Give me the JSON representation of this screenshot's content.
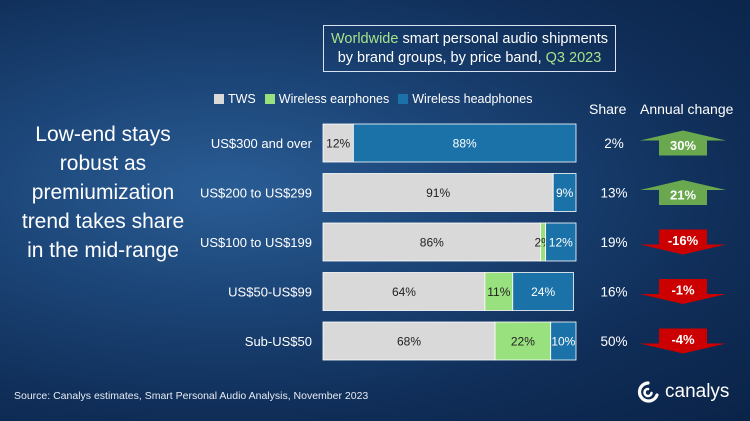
{
  "headline": {
    "line1_prefix": "Worldwide",
    "line1_rest": " smart personal audio shipments",
    "line2_prefix": "by brand groups, by price band, ",
    "line2_suffix": "Q3 2023"
  },
  "side_text": "Low-end stays robust as premiumization trend takes share in the mid-range",
  "columns": {
    "share": "Share",
    "annual_change": "Annual change"
  },
  "source": "Source: Canalys estimates, Smart Personal Audio Analysis, November 2023",
  "brand": "canalys",
  "colors": {
    "tws": "#d9d9d9",
    "wireless_earphones": "#99e07f",
    "wireless_headphones": "#1a72a8",
    "arrow_up": "#6aa84f",
    "arrow_down": "#cc0000"
  },
  "chart_data": {
    "type": "bar",
    "orientation": "horizontal",
    "stacked": true,
    "unit": "%",
    "categories": [
      "US$300 and over",
      "US$200 to US$299",
      "US$100 to US$199",
      "US$50-US$99",
      "Sub-US$50"
    ],
    "series": [
      {
        "name": "TWS",
        "values": [
          12,
          91,
          86,
          64,
          68
        ]
      },
      {
        "name": "Wireless earphones",
        "values": [
          0,
          0,
          2,
          11,
          22
        ]
      },
      {
        "name": "Wireless headphones",
        "values": [
          88,
          9,
          12,
          24,
          10
        ]
      }
    ],
    "share": [
      "2%",
      "13%",
      "19%",
      "16%",
      "50%"
    ],
    "annual_change": [
      "30%",
      "21%",
      "-16%",
      "-1%",
      "-4%"
    ],
    "annual_change_values": [
      30,
      21,
      -16,
      -1,
      -4
    ],
    "legend_position": "top",
    "xlim": [
      0,
      100
    ]
  }
}
